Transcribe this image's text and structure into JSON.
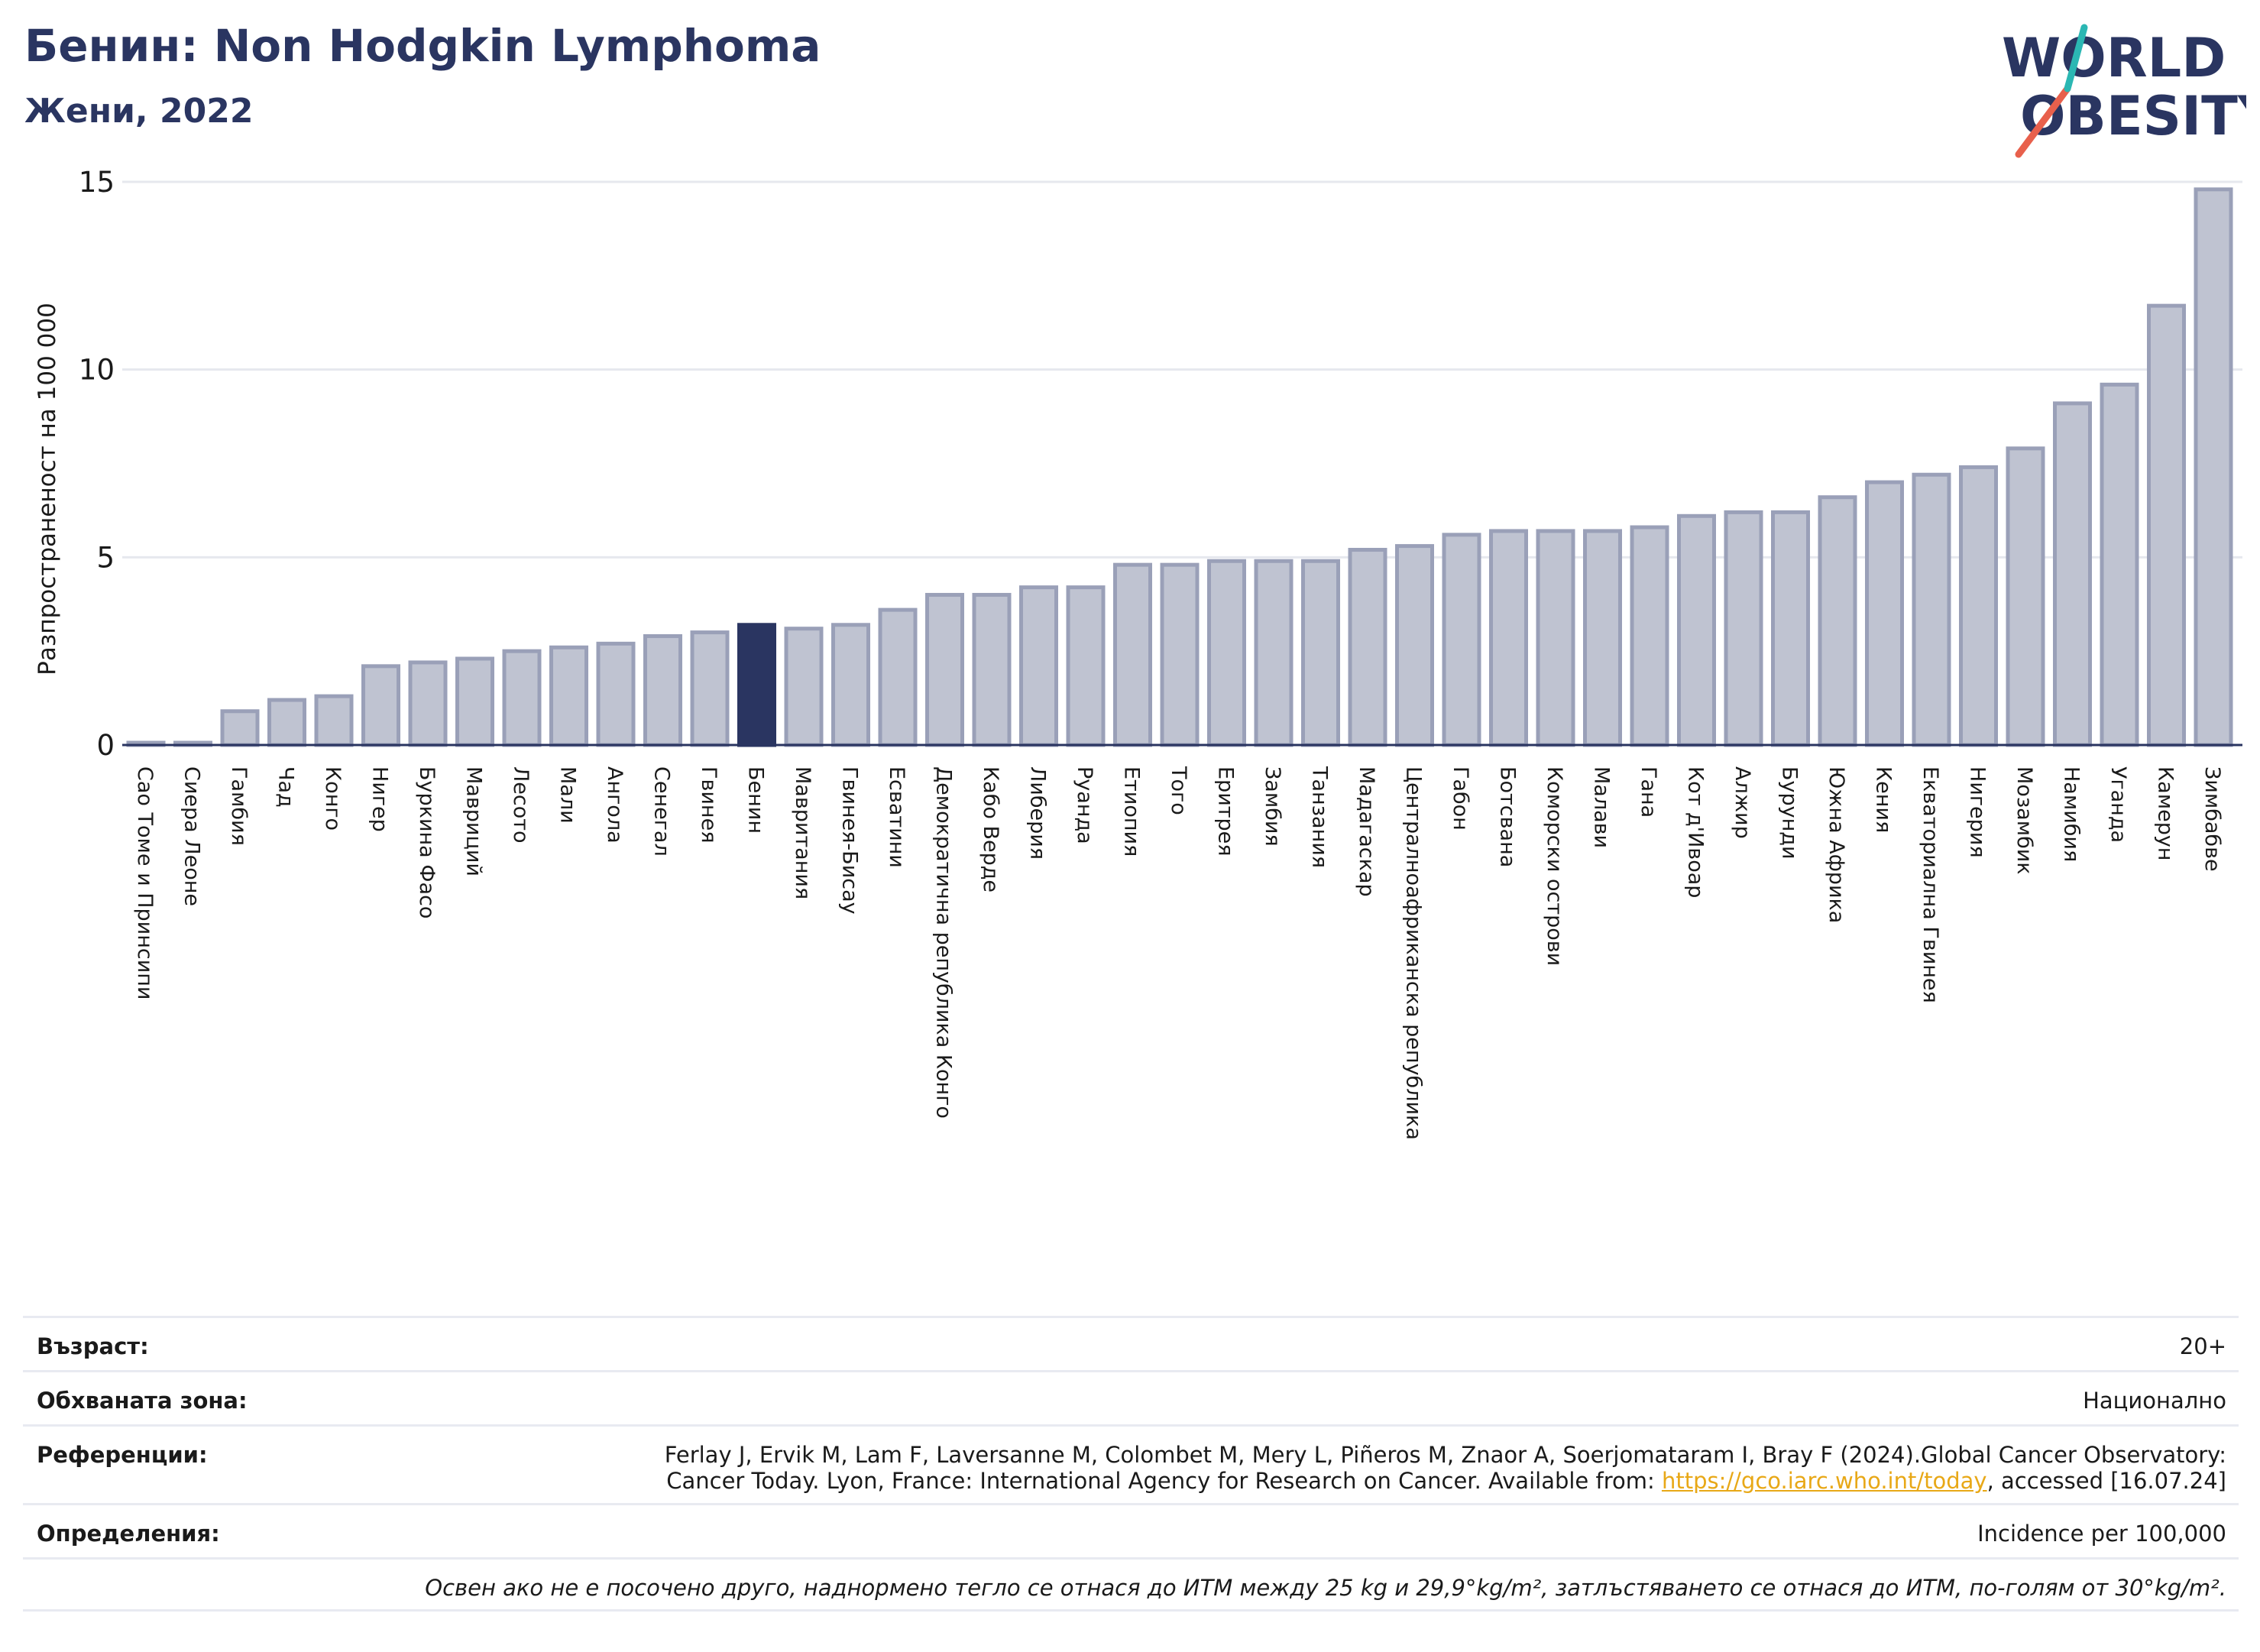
{
  "header": {
    "title": "Бенин: Non Hodgkin Lymphoma",
    "subtitle": "Жени, 2022"
  },
  "logo": {
    "line1": "WORLD",
    "line2": "OBESITY",
    "colors": {
      "text": "#2a3561",
      "slash_red": "#e8604c",
      "slash_teal": "#2bb7b3"
    }
  },
  "chart_data": {
    "type": "bar",
    "title": "Бенин: Non Hodgkin Lymphoma",
    "subtitle": "Жени, 2022",
    "ylabel": "Разпространеност  на 100 000",
    "xlabel": "",
    "ylim": [
      0,
      15
    ],
    "yticks": [
      0,
      5,
      10,
      15
    ],
    "grid": true,
    "highlight": "Бенин",
    "colors": {
      "bar": "#bfc3d1",
      "bar_edge": "#9aa0b8",
      "highlight": "#2a3561",
      "axis": "#2a3561",
      "grid": "#e6e8ee"
    },
    "categories": [
      "Сао Томе и Принсипи",
      "Сиера Леоне",
      "Гамбия",
      "Чад",
      "Конго",
      "Нигер",
      "Буркина Фасо",
      "Мавриций",
      "Лесото",
      "Мали",
      "Ангола",
      "Сенегал",
      "Гвинея",
      "Бенин",
      "Мавритания",
      "Гвинея-Бисау",
      "Есватини",
      "Демократична република Конго",
      "Кабо Верде",
      "Либерия",
      "Руанда",
      "Етиопия",
      "Того",
      "Еритрея",
      "Замбия",
      "Танзания",
      "Мадагаскар",
      "Централноафриканска република",
      "Габон",
      "Ботсвана",
      "Коморски острови",
      "Малави",
      "Гана",
      "Кот д'Ивоар",
      "Алжир",
      "Бурунди",
      "Южна Африка",
      "Кения",
      "Екваториална Гвинея",
      "Нигерия",
      "Мозамбик",
      "Намибия",
      "Уганда",
      "Камерун",
      "Зимбабве"
    ],
    "values": [
      0.05,
      0.05,
      0.9,
      1.2,
      1.3,
      2.1,
      2.2,
      2.3,
      2.5,
      2.6,
      2.7,
      2.9,
      3.0,
      3.2,
      3.1,
      3.2,
      3.6,
      4.0,
      4.0,
      4.2,
      4.2,
      4.8,
      4.8,
      4.9,
      4.9,
      4.9,
      5.2,
      5.3,
      5.6,
      5.7,
      5.7,
      5.7,
      5.8,
      6.1,
      6.2,
      6.2,
      6.6,
      7.0,
      7.2,
      7.4,
      7.9,
      9.1,
      9.6,
      11.7,
      14.8
    ]
  },
  "info": {
    "age_label": "Възраст:",
    "age_value": "20+",
    "area_label": "Обхваната зона:",
    "area_value": "Национално",
    "ref_label": "Референции:",
    "ref_line1": "Ferlay J, Ervik M, Lam F, Laversanne M, Colombet M, Mery L, Piñeros M, Znaor A, Soerjomataram I, Bray F (2024).Global Cancer Observatory:",
    "ref_line2_pre": "Cancer Today. Lyon, France: International Agency for Research on Cancer. Available from: ",
    "ref_link": "https://gco.iarc.who.int/today",
    "ref_line2_post": ", accessed [16.07.24]",
    "def_label": "Определения:",
    "def_value": "Incidence per 100,000",
    "note": "Освен ако не е посочено друго, наднормено тегло се отнася до ИТМ между 25 kg и 29,9°kg/m², затлъстяването се отнася до ИТМ, по-голям от 30°kg/m²."
  }
}
